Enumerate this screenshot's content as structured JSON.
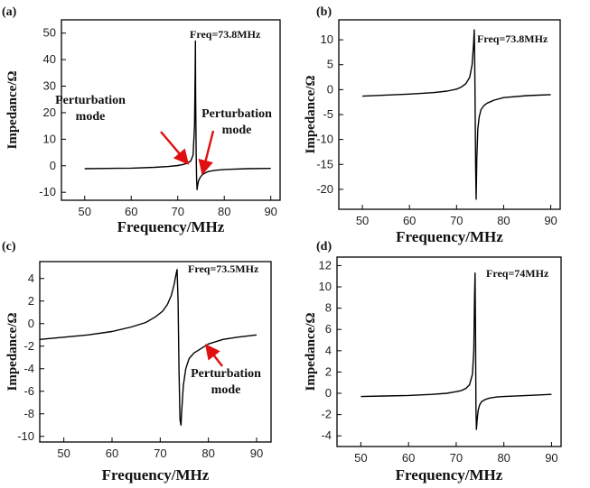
{
  "chart_data": [
    {
      "id": "a",
      "type": "line",
      "panel_label": "(a)",
      "title": "",
      "xlabel": "Frequency/MHz",
      "ylabel": "Impedance/Ω",
      "xlim": [
        45,
        92
      ],
      "ylim": [
        -13,
        55
      ],
      "xticks": [
        50,
        60,
        70,
        80,
        90
      ],
      "yticks": [
        -10,
        0,
        10,
        20,
        30,
        40,
        50
      ],
      "grid": false,
      "annotation_text": "Freq=73.8MHz",
      "callouts": [
        {
          "lines": [
            "Perturbation",
            "mode"
          ],
          "target": [
            72.2,
            0.8
          ]
        },
        {
          "lines": [
            "Perturbation",
            "mode"
          ],
          "target": [
            75.3,
            -3
          ]
        }
      ],
      "series": [
        {
          "x": [
            50,
            55,
            60,
            65,
            68,
            70,
            71,
            72,
            72.8,
            73.3,
            73.6,
            73.75,
            73.8,
            73.85,
            73.95,
            74.05,
            74.15,
            74.3,
            74.5,
            74.8,
            75.2,
            75.8,
            76.5,
            78,
            80,
            85,
            90
          ],
          "y": [
            -1.1,
            -1.0,
            -0.9,
            -0.6,
            -0.3,
            0.1,
            0.4,
            0.9,
            1.8,
            4,
            15,
            35,
            47,
            28,
            5,
            -5,
            -9,
            -7,
            -5.5,
            -4.5,
            -3.5,
            -2.8,
            -2.2,
            -1.7,
            -1.4,
            -1.1,
            -1.0
          ]
        }
      ]
    },
    {
      "id": "b",
      "type": "line",
      "panel_label": "(b)",
      "title": "",
      "xlabel": "Frequency/MHz",
      "ylabel": "Impedance/Ω",
      "xlim": [
        45,
        92
      ],
      "ylim": [
        -24,
        14
      ],
      "xticks": [
        50,
        60,
        70,
        80,
        90
      ],
      "yticks": [
        -20,
        -15,
        -10,
        -5,
        0,
        5,
        10
      ],
      "grid": false,
      "annotation_text": "Freq=73.8MHz",
      "series": [
        {
          "x": [
            50,
            55,
            60,
            65,
            68,
            70,
            71,
            72,
            72.8,
            73.3,
            73.6,
            73.75,
            73.85,
            73.95,
            74.05,
            74.15,
            74.3,
            74.5,
            74.8,
            75.2,
            75.8,
            76.5,
            78,
            80,
            85,
            90
          ],
          "y": [
            -1.3,
            -1.1,
            -0.9,
            -0.6,
            -0.3,
            0.1,
            0.5,
            1.2,
            2.5,
            5,
            9,
            12,
            6,
            -4,
            -15,
            -22,
            -14,
            -8,
            -5.5,
            -4,
            -3.2,
            -2.7,
            -2.1,
            -1.6,
            -1.2,
            -1.0
          ]
        }
      ]
    },
    {
      "id": "c",
      "type": "line",
      "panel_label": "(c)",
      "title": "",
      "xlabel": "Frequency/MHz",
      "ylabel": "Impedance/Ω",
      "xlim": [
        45,
        93
      ],
      "ylim": [
        -10.5,
        5.5
      ],
      "xticks": [
        50,
        60,
        70,
        80,
        90
      ],
      "yticks": [
        -10,
        -8,
        -6,
        -4,
        -2,
        0,
        2,
        4
      ],
      "ytick_labels": [
        "-10",
        "-8",
        "-6",
        "-4",
        "-2",
        "0",
        "2",
        "4"
      ],
      "grid": false,
      "annotation_text": "Freq=73.5MHz",
      "callouts": [
        {
          "lines": [
            "Perturbation",
            "mode"
          ],
          "target": [
            79.5,
            -1.9
          ]
        }
      ],
      "series": [
        {
          "x": [
            45,
            50,
            55,
            60,
            64,
            67,
            69,
            70.5,
            71.5,
            72.3,
            72.9,
            73.3,
            73.5,
            73.7,
            73.9,
            74.1,
            74.3,
            74.5,
            74.8,
            75.3,
            76,
            77,
            78.5,
            80,
            83,
            86,
            90
          ],
          "y": [
            -1.4,
            -1.2,
            -1.0,
            -0.7,
            -0.3,
            0.1,
            0.6,
            1.1,
            1.7,
            2.5,
            3.5,
            4.4,
            4.8,
            2,
            -4,
            -8.5,
            -9,
            -7.5,
            -5.5,
            -4,
            -3.1,
            -2.6,
            -2.2,
            -1.8,
            -1.4,
            -1.2,
            -1.0
          ]
        }
      ]
    },
    {
      "id": "d",
      "type": "line",
      "panel_label": "(d)",
      "title": "",
      "xlabel": "Frequency/MHz",
      "ylabel": "Impedance/Ω",
      "xlim": [
        45,
        92
      ],
      "ylim": [
        -5,
        12.8
      ],
      "xticks": [
        50,
        60,
        70,
        80,
        90
      ],
      "yticks": [
        -4,
        -2,
        0,
        2,
        4,
        6,
        8,
        10,
        12
      ],
      "grid": false,
      "annotation_text": "Freq=74MHz",
      "series": [
        {
          "x": [
            50,
            55,
            60,
            65,
            68,
            70,
            71,
            72,
            72.8,
            73.4,
            73.7,
            73.85,
            73.95,
            74.05,
            74.15,
            74.25,
            74.4,
            74.6,
            74.9,
            75.3,
            76,
            77,
            78.5,
            80,
            85,
            90
          ],
          "y": [
            -0.3,
            -0.25,
            -0.2,
            -0.1,
            0,
            0.15,
            0.25,
            0.45,
            0.8,
            1.8,
            4,
            9,
            11.3,
            6,
            -1.5,
            -3.4,
            -2.5,
            -1.6,
            -1.1,
            -0.8,
            -0.6,
            -0.45,
            -0.35,
            -0.3,
            -0.2,
            -0.1
          ]
        }
      ]
    }
  ]
}
